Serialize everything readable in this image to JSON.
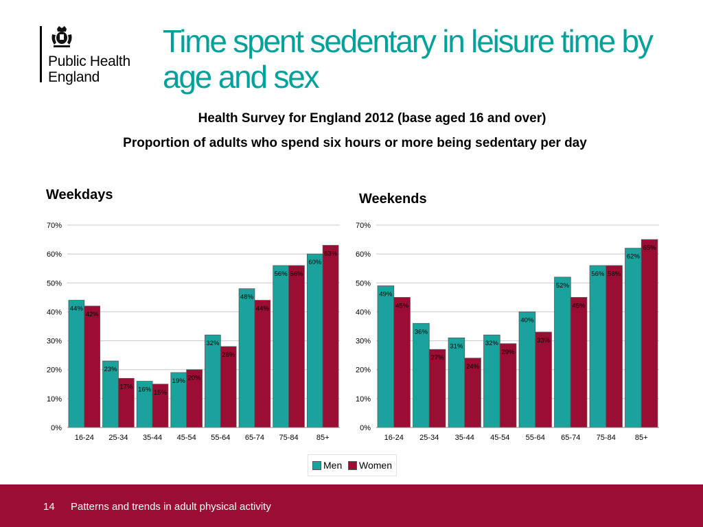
{
  "logo": {
    "org_name": "Public Health\nEngland"
  },
  "title": "Time spent sedentary in leisure time by age and sex",
  "subtitle1": "Health Survey for England 2012 (base aged 16 and over)",
  "subtitle2": "Proportion of adults who spend six hours or more being sedentary per day",
  "colors": {
    "men": "#1aa39c",
    "women": "#9b0d33",
    "accent": "#00a19a"
  },
  "chart_data": [
    {
      "type": "bar",
      "title": "Weekdays",
      "categories": [
        "16-24",
        "25-34",
        "35-44",
        "45-54",
        "55-64",
        "65-74",
        "75-84",
        "85+"
      ],
      "series": [
        {
          "name": "Men",
          "values": [
            44,
            23,
            16,
            19,
            32,
            48,
            56,
            60
          ]
        },
        {
          "name": "Women",
          "values": [
            42,
            17,
            15,
            20,
            28,
            44,
            56,
            63
          ]
        }
      ],
      "ylim": [
        0,
        70
      ],
      "yticks": [
        "0%",
        "10%",
        "20%",
        "30%",
        "40%",
        "50%",
        "60%",
        "70%"
      ],
      "value_suffix": "%",
      "grid": true
    },
    {
      "type": "bar",
      "title": "Weekends",
      "categories": [
        "16-24",
        "25-34",
        "35-44",
        "45-54",
        "55-64",
        "65-74",
        "75-84",
        "85+"
      ],
      "series": [
        {
          "name": "Men",
          "values": [
            49,
            36,
            31,
            32,
            40,
            52,
            56,
            62
          ]
        },
        {
          "name": "Women",
          "values": [
            45,
            27,
            24,
            29,
            33,
            45,
            56,
            65
          ]
        }
      ],
      "ylim": [
        0,
        70
      ],
      "yticks": [
        "0%",
        "10%",
        "20%",
        "30%",
        "40%",
        "50%",
        "60%",
        "70%"
      ],
      "value_suffix": "%",
      "grid": true
    }
  ],
  "legend": {
    "items": [
      "Men",
      "Women"
    ],
    "position": "bottom"
  },
  "footer": {
    "page_number": "14",
    "text": "Patterns and trends in adult physical activity"
  }
}
